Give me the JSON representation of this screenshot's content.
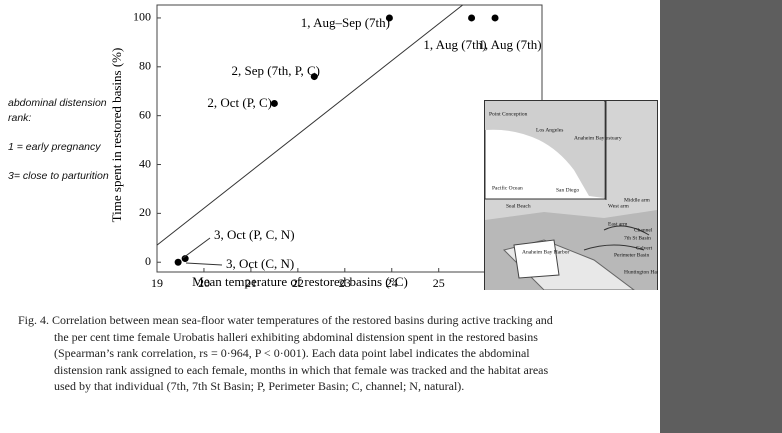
{
  "chart_data": {
    "type": "scatter",
    "x_label": "Mean temperature of restored basins (°C)",
    "y_label": "Time spent in restored basins (%)",
    "x": [
      23.95,
      25.7,
      26.2,
      22.35,
      21.5,
      19.6,
      19.45
    ],
    "values": [
      100,
      100,
      100,
      76,
      65,
      1.5,
      0
    ],
    "point_labels": [
      "1, Aug–Sep (7th)",
      "1, Aug (7th)",
      "1, Aug (7th)",
      "2, Sep (7th, P, C)",
      "2, Oct (P, C)",
      "3, Oct (P, C, N)",
      "3, Oct (C, N)"
    ],
    "color": "#000000",
    "fit_line": {
      "x": [
        19,
        25.51
      ],
      "y": [
        7,
        105.3
      ]
    },
    "xlim": [
      19,
      27.2
    ],
    "ylim": [
      -4,
      105.3
    ],
    "xticks": [
      19,
      20,
      21,
      22,
      23,
      24,
      25
    ],
    "yticks": [
      0,
      20,
      40,
      60,
      80,
      100
    ]
  },
  "side_note": [
    "abdominal distension rank:",
    "1 = early pregnancy",
    "3= close to parturition"
  ],
  "map": {
    "labels": [
      "Point Conception",
      "Los Angeles",
      "Anaheim Bay estuary",
      "Pacific Ocean",
      "San Diego",
      "Seal Beach",
      "West arm",
      "Middle arm",
      "East arm",
      "Channel",
      "7th St Basin",
      "Calvert",
      "Perimeter Basin",
      "Anaheim Bay Harbor",
      "Huntington Harbor"
    ]
  },
  "caption": [
    "Fig. 4. Correlation between mean sea-floor water temperatures of the restored basins during active tracking and",
    "the per cent time female Urobatis halleri exhibiting abdominal distension spent in the restored basins",
    "(Spearman’s rank correlation, rs = 0·964, P < 0·001). Each data point label indicates the abdominal",
    "distension rank assigned to each female, months in which that female was tracked and the habitat areas",
    "used by that individual (7th, 7th St Basin; P, Perimeter Basin; C, channel; N, natural)."
  ]
}
